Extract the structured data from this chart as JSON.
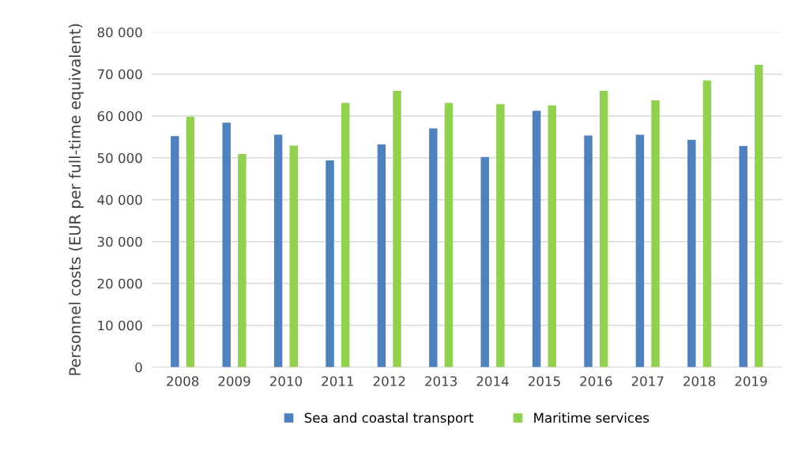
{
  "chart_data": {
    "type": "bar",
    "ylabel": "Personnel costs (EUR per full-time equivalent)",
    "categories": [
      "2008",
      "2009",
      "2010",
      "2011",
      "2012",
      "2013",
      "2014",
      "2015",
      "2016",
      "2017",
      "2018",
      "2019"
    ],
    "series": [
      {
        "name": "Sea and coastal transport",
        "color": "#4f81bd",
        "values": [
          55200,
          58400,
          55500,
          49400,
          53200,
          57000,
          50200,
          61200,
          55300,
          55500,
          54300,
          52800
        ]
      },
      {
        "name": "Maritime services",
        "color": "#92d050",
        "values": [
          59800,
          50900,
          52900,
          63100,
          66000,
          63100,
          62800,
          62500,
          66000,
          63700,
          68500,
          72200
        ]
      }
    ],
    "ylim": [
      0,
      80000
    ],
    "yticks": [
      {
        "value": 0,
        "label": "0"
      },
      {
        "value": 10000,
        "label": "10 000"
      },
      {
        "value": 20000,
        "label": "20 000"
      },
      {
        "value": 30000,
        "label": "30 000"
      },
      {
        "value": 40000,
        "label": "40 000"
      },
      {
        "value": 50000,
        "label": "50 000"
      },
      {
        "value": 60000,
        "label": "60 000"
      },
      {
        "value": 70000,
        "label": "70 000"
      },
      {
        "value": 80000,
        "label": "80 000"
      }
    ],
    "grid": "y",
    "legend": "bottom"
  }
}
